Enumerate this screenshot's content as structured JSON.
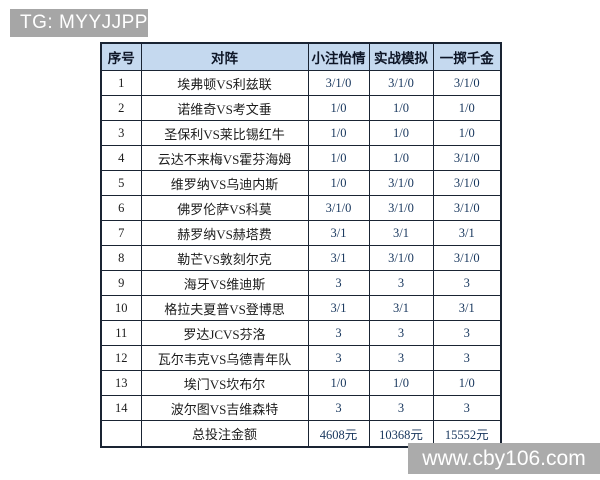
{
  "banner": {
    "text": "TG: MYYJJPP"
  },
  "watermark": {
    "text": "www.cby106.com"
  },
  "colors": {
    "banner_bg": "#a6a6a6",
    "watermark_bg": "#ababab",
    "header_bg": "#c5d9ef",
    "table_border": "#1a2433",
    "value_text": "#17365d",
    "body_text": "#1c1c1c"
  },
  "chart_data": {
    "type": "table",
    "columns": [
      "序号",
      "对阵",
      "小注怡情",
      "实战模拟",
      "一掷千金"
    ],
    "rows": [
      [
        "1",
        "埃弗顿VS利兹联",
        "3/1/0",
        "3/1/0",
        "3/1/0"
      ],
      [
        "2",
        "诺维奇VS考文垂",
        "1/0",
        "1/0",
        "1/0"
      ],
      [
        "3",
        "圣保利VS莱比锡红牛",
        "1/0",
        "1/0",
        "1/0"
      ],
      [
        "4",
        "云达不来梅VS霍芬海姆",
        "1/0",
        "1/0",
        "3/1/0"
      ],
      [
        "5",
        "维罗纳VS乌迪内斯",
        "1/0",
        "3/1/0",
        "3/1/0"
      ],
      [
        "6",
        "佛罗伦萨VS科莫",
        "3/1/0",
        "3/1/0",
        "3/1/0"
      ],
      [
        "7",
        "赫罗纳VS赫塔费",
        "3/1",
        "3/1",
        "3/1"
      ],
      [
        "8",
        "勒芒VS敦刻尔克",
        "3/1",
        "3/1/0",
        "3/1/0"
      ],
      [
        "9",
        "海牙VS维迪斯",
        "3",
        "3",
        "3"
      ],
      [
        "10",
        "格拉夫夏普VS登博思",
        "3/1",
        "3/1",
        "3/1"
      ],
      [
        "11",
        "罗达JCVS芬洛",
        "3",
        "3",
        "3"
      ],
      [
        "12",
        "瓦尔韦克VS乌德青年队",
        "3",
        "3",
        "3"
      ],
      [
        "13",
        "埃门VS坎布尔",
        "1/0",
        "1/0",
        "1/0"
      ],
      [
        "14",
        "波尔图VS吉维森特",
        "3",
        "3",
        "3"
      ]
    ],
    "total_row": [
      "",
      "总投注金额",
      "4608元",
      "10368元",
      "15552元"
    ]
  }
}
